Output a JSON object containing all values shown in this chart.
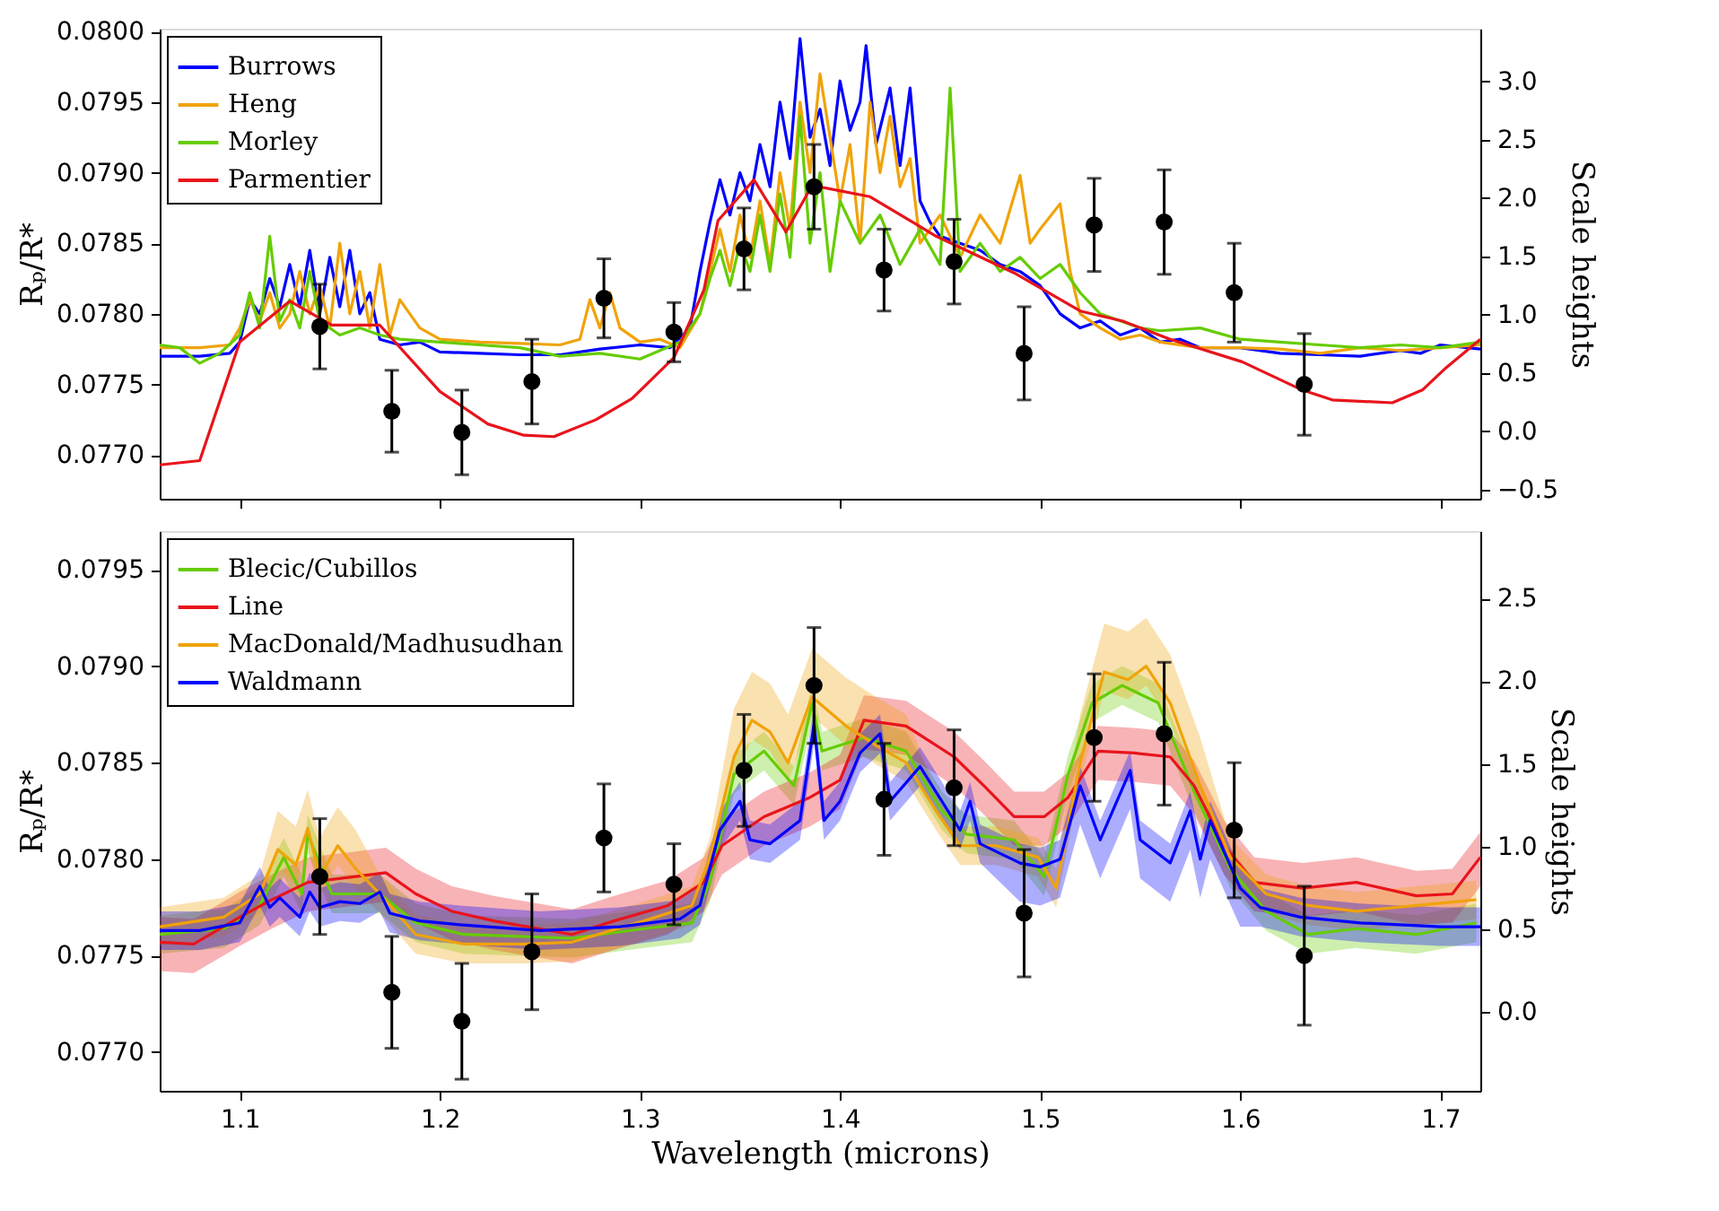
{
  "chart_data": [
    {
      "type": "line",
      "ylabel": "Rₚ/R*",
      "y2label": "Scale heights",
      "legend": "top left",
      "tick_labels": "y",
      "xlim": [
        1.06,
        1.72
      ],
      "xticks": [
        1.1,
        1.2,
        1.3,
        1.4,
        1.5,
        1.6,
        1.7
      ],
      "ylim": [
        0.07669,
        0.08002
      ],
      "yticks": [
        {
          "value": 0.077,
          "label": "0.0770"
        },
        {
          "value": 0.0775,
          "label": "0.0775"
        },
        {
          "value": 0.078,
          "label": "0.0780"
        },
        {
          "value": 0.0785,
          "label": "0.0785"
        },
        {
          "value": 0.079,
          "label": "0.0790"
        },
        {
          "value": 0.0795,
          "label": "0.0795"
        },
        {
          "value": 0.08,
          "label": "0.0800"
        }
      ],
      "y2lim": [
        -0.58,
        3.45
      ],
      "y2ticks": [
        {
          "value": -0.5,
          "label": "−0.5"
        },
        {
          "value": 0,
          "label": "0.0"
        },
        {
          "value": 0.5,
          "label": "0.5"
        },
        {
          "value": 1,
          "label": "1.0"
        },
        {
          "value": 1.5,
          "label": "1.5"
        },
        {
          "value": 2,
          "label": "2.0"
        },
        {
          "value": 2.5,
          "label": "2.5"
        },
        {
          "value": 3,
          "label": "3.0"
        }
      ],
      "series": [
        {
          "name": "Burrows",
          "color": "#0000ff",
          "x": [
            1.06,
            1.08,
            1.095,
            1.1,
            1.105,
            1.11,
            1.115,
            1.12,
            1.125,
            1.13,
            1.135,
            1.14,
            1.145,
            1.15,
            1.155,
            1.16,
            1.165,
            1.17,
            1.18,
            1.19,
            1.2,
            1.22,
            1.24,
            1.26,
            1.28,
            1.3,
            1.315,
            1.325,
            1.33,
            1.335,
            1.34,
            1.345,
            1.35,
            1.355,
            1.36,
            1.365,
            1.37,
            1.375,
            1.38,
            1.385,
            1.39,
            1.395,
            1.4,
            1.405,
            1.41,
            1.413,
            1.418,
            1.425,
            1.43,
            1.435,
            1.44,
            1.445,
            1.45,
            1.46,
            1.47,
            1.48,
            1.49,
            1.5,
            1.51,
            1.52,
            1.53,
            1.54,
            1.55,
            1.56,
            1.57,
            1.58,
            1.6,
            1.62,
            1.64,
            1.66,
            1.68,
            1.69,
            1.7,
            1.72
          ],
          "values": [
            0.0777,
            0.0777,
            0.07772,
            0.0778,
            0.0781,
            0.078,
            0.07825,
            0.07805,
            0.07835,
            0.07805,
            0.07845,
            0.078,
            0.0784,
            0.07805,
            0.07845,
            0.078,
            0.07815,
            0.07782,
            0.07778,
            0.0778,
            0.07773,
            0.07772,
            0.07771,
            0.07771,
            0.07775,
            0.07778,
            0.07776,
            0.0779,
            0.0783,
            0.07865,
            0.07895,
            0.0787,
            0.079,
            0.0788,
            0.0792,
            0.0789,
            0.0795,
            0.0791,
            0.07995,
            0.07925,
            0.07945,
            0.07905,
            0.07965,
            0.0793,
            0.0795,
            0.0799,
            0.0792,
            0.0796,
            0.07905,
            0.0796,
            0.0788,
            0.07865,
            0.07855,
            0.0785,
            0.07845,
            0.07835,
            0.0783,
            0.0782,
            0.078,
            0.0779,
            0.07795,
            0.07785,
            0.0779,
            0.0778,
            0.07782,
            0.07776,
            0.07776,
            0.07772,
            0.07771,
            0.0777,
            0.07774,
            0.07772,
            0.07778,
            0.07775
          ]
        },
        {
          "name": "Heng",
          "color": "#f0a30a",
          "x": [
            1.06,
            1.08,
            1.095,
            1.1,
            1.105,
            1.11,
            1.115,
            1.12,
            1.125,
            1.13,
            1.135,
            1.14,
            1.145,
            1.15,
            1.155,
            1.16,
            1.165,
            1.17,
            1.175,
            1.18,
            1.19,
            1.2,
            1.22,
            1.24,
            1.26,
            1.27,
            1.275,
            1.28,
            1.285,
            1.29,
            1.3,
            1.31,
            1.32,
            1.33,
            1.335,
            1.34,
            1.345,
            1.35,
            1.355,
            1.36,
            1.365,
            1.37,
            1.375,
            1.38,
            1.385,
            1.39,
            1.4,
            1.405,
            1.41,
            1.415,
            1.42,
            1.425,
            1.43,
            1.435,
            1.44,
            1.45,
            1.46,
            1.47,
            1.48,
            1.49,
            1.495,
            1.5,
            1.51,
            1.515,
            1.52,
            1.53,
            1.54,
            1.55,
            1.56,
            1.58,
            1.6,
            1.62,
            1.64,
            1.66,
            1.68,
            1.7,
            1.72
          ],
          "values": [
            0.07776,
            0.07776,
            0.07778,
            0.0779,
            0.0781,
            0.07795,
            0.07815,
            0.0779,
            0.078,
            0.0783,
            0.078,
            0.0782,
            0.0779,
            0.0785,
            0.078,
            0.0783,
            0.0779,
            0.07835,
            0.07785,
            0.0781,
            0.0779,
            0.07782,
            0.0778,
            0.07779,
            0.07778,
            0.07782,
            0.0781,
            0.0779,
            0.07815,
            0.0779,
            0.0778,
            0.07782,
            0.07776,
            0.078,
            0.0783,
            0.0786,
            0.0783,
            0.0787,
            0.0784,
            0.0788,
            0.07835,
            0.079,
            0.0786,
            0.0795,
            0.079,
            0.0797,
            0.0788,
            0.0792,
            0.0785,
            0.0795,
            0.079,
            0.0794,
            0.0789,
            0.0791,
            0.0785,
            0.0787,
            0.0784,
            0.0787,
            0.0785,
            0.07898,
            0.0785,
            0.0786,
            0.07878,
            0.0783,
            0.078,
            0.0779,
            0.07782,
            0.07785,
            0.0778,
            0.07776,
            0.07776,
            0.07775,
            0.07772,
            0.07776,
            0.07774,
            0.07776,
            0.07778
          ]
        },
        {
          "name": "Morley",
          "color": "#66cc00",
          "x": [
            1.06,
            1.07,
            1.08,
            1.09,
            1.1,
            1.105,
            1.11,
            1.115,
            1.12,
            1.125,
            1.13,
            1.135,
            1.14,
            1.15,
            1.16,
            1.17,
            1.18,
            1.2,
            1.22,
            1.24,
            1.26,
            1.28,
            1.3,
            1.32,
            1.33,
            1.335,
            1.34,
            1.345,
            1.35,
            1.355,
            1.36,
            1.365,
            1.37,
            1.375,
            1.38,
            1.385,
            1.39,
            1.395,
            1.4,
            1.41,
            1.42,
            1.43,
            1.44,
            1.45,
            1.455,
            1.46,
            1.47,
            1.48,
            1.49,
            1.5,
            1.51,
            1.52,
            1.53,
            1.54,
            1.55,
            1.56,
            1.58,
            1.6,
            1.62,
            1.64,
            1.66,
            1.68,
            1.7,
            1.72
          ],
          "values": [
            0.07778,
            0.07776,
            0.07765,
            0.07772,
            0.07785,
            0.07815,
            0.0779,
            0.07855,
            0.07795,
            0.0781,
            0.0779,
            0.0783,
            0.07795,
            0.07785,
            0.0779,
            0.07785,
            0.07782,
            0.0778,
            0.07778,
            0.07776,
            0.0777,
            0.07772,
            0.07768,
            0.0778,
            0.078,
            0.07825,
            0.07845,
            0.0782,
            0.0785,
            0.0783,
            0.0787,
            0.0783,
            0.07885,
            0.0784,
            0.0794,
            0.0785,
            0.079,
            0.0783,
            0.0788,
            0.0785,
            0.0787,
            0.07835,
            0.0786,
            0.07835,
            0.0796,
            0.0783,
            0.0785,
            0.0783,
            0.0784,
            0.07825,
            0.07835,
            0.07815,
            0.078,
            0.07795,
            0.0779,
            0.07788,
            0.0779,
            0.07782,
            0.0778,
            0.07778,
            0.07776,
            0.07778,
            0.07776,
            0.0778
          ]
        },
        {
          "name": "Parmentier",
          "color": "#e8141c",
          "x": [
            1.06,
            1.08,
            1.1,
            1.125,
            1.146,
            1.17,
            1.2,
            1.224,
            1.242,
            1.257,
            1.278,
            1.296,
            1.317,
            1.332,
            1.339,
            1.357,
            1.373,
            1.386,
            1.415,
            1.448,
            1.487,
            1.52,
            1.541,
            1.565,
            1.601,
            1.631,
            1.646,
            1.676,
            1.691,
            1.703,
            1.72
          ],
          "values": [
            0.07693,
            0.07696,
            0.0778,
            0.07809,
            0.07792,
            0.07792,
            0.07745,
            0.07722,
            0.07714,
            0.07713,
            0.07725,
            0.0774,
            0.07769,
            0.07817,
            0.07866,
            0.07895,
            0.07858,
            0.07891,
            0.07883,
            0.07855,
            0.07829,
            0.07802,
            0.07795,
            0.07782,
            0.07766,
            0.07746,
            0.07739,
            0.07737,
            0.07746,
            0.07762,
            0.07782
          ]
        },
        {
          "type": "scatter",
          "color": "#000000",
          "marker": "circle",
          "x": [
            1.14,
            1.176,
            1.211,
            1.246,
            1.282,
            1.317,
            1.352,
            1.387,
            1.422,
            1.457,
            1.492,
            1.527,
            1.562,
            1.597,
            1.632
          ],
          "values": [
            0.07791,
            0.07731,
            0.07716,
            0.07752,
            0.07811,
            0.07787,
            0.07846,
            0.0789,
            0.07831,
            0.07837,
            0.07772,
            0.07863,
            0.07865,
            0.07815,
            0.0775
          ],
          "errors": [
            0.0003,
            0.00029,
            0.0003,
            0.0003,
            0.00028,
            0.00021,
            0.00029,
            0.0003,
            0.00029,
            0.0003,
            0.00033,
            0.00033,
            0.00037,
            0.00035,
            0.00036
          ]
        }
      ]
    },
    {
      "type": "line",
      "xlabel": "Wavelength  (microns)",
      "ylabel": "Rₚ/R*",
      "y2label": "Scale heights",
      "legend": "top left",
      "xlim": [
        1.06,
        1.72
      ],
      "xticks": [
        1.1,
        1.2,
        1.3,
        1.4,
        1.5,
        1.6,
        1.7
      ],
      "ylim": [
        0.0768,
        0.0797
      ],
      "yticks": [
        {
          "value": 0.077,
          "label": "0.0770"
        },
        {
          "value": 0.0775,
          "label": "0.0775"
        },
        {
          "value": 0.078,
          "label": "0.0780"
        },
        {
          "value": 0.0785,
          "label": "0.0785"
        },
        {
          "value": 0.079,
          "label": "0.0790"
        },
        {
          "value": 0.0795,
          "label": "0.0795"
        }
      ],
      "y2lim": [
        -0.476,
        2.908
      ],
      "y2ticks": [
        {
          "value": 0,
          "label": "0.0"
        },
        {
          "value": 0.5,
          "label": "0.5"
        },
        {
          "value": 1,
          "label": "1.0"
        },
        {
          "value": 1.5,
          "label": "1.5"
        },
        {
          "value": 2,
          "label": "2.0"
        },
        {
          "value": 2.5,
          "label": "2.5"
        }
      ],
      "series": [
        {
          "name": "Blecic/Cubillos",
          "color": "#66cc00",
          "x": [
            1.06,
            1.092,
            1.11,
            1.122,
            1.131,
            1.134,
            1.146,
            1.17,
            1.188,
            1.212,
            1.266,
            1.302,
            1.326,
            1.335,
            1.347,
            1.362,
            1.377,
            1.386,
            1.391,
            1.412,
            1.433,
            1.451,
            1.463,
            1.487,
            1.502,
            1.514,
            1.526,
            1.541,
            1.559,
            1.577,
            1.595,
            1.613,
            1.634,
            1.658,
            1.688,
            1.718
          ],
          "values": [
            0.07761,
            0.07764,
            0.07776,
            0.07801,
            0.07782,
            0.07813,
            0.07782,
            0.07782,
            0.07767,
            0.07761,
            0.07759,
            0.07764,
            0.07767,
            0.07788,
            0.07844,
            0.07856,
            0.07838,
            0.07881,
            0.07856,
            0.07863,
            0.07856,
            0.07825,
            0.07813,
            0.0781,
            0.07791,
            0.07844,
            0.07881,
            0.0789,
            0.07881,
            0.07835,
            0.07795,
            0.07773,
            0.07761,
            0.07764,
            0.07761,
            0.07767
          ],
          "lower": [
            0.07751,
            0.07754,
            0.07766,
            0.07791,
            0.07772,
            0.07803,
            0.07772,
            0.07772,
            0.07757,
            0.07751,
            0.07749,
            0.07754,
            0.07757,
            0.07778,
            0.07834,
            0.07846,
            0.07828,
            0.07871,
            0.07846,
            0.07853,
            0.07846,
            0.07815,
            0.07803,
            0.078,
            0.07781,
            0.07834,
            0.07871,
            0.0788,
            0.07871,
            0.07825,
            0.07785,
            0.07763,
            0.07751,
            0.07754,
            0.07751,
            0.07757
          ],
          "upper": [
            0.07771,
            0.07774,
            0.07786,
            0.07811,
            0.07792,
            0.07823,
            0.07792,
            0.07792,
            0.07777,
            0.07771,
            0.07769,
            0.07774,
            0.07777,
            0.07798,
            0.07854,
            0.07866,
            0.07848,
            0.07891,
            0.07866,
            0.07873,
            0.07866,
            0.07835,
            0.07823,
            0.0782,
            0.07801,
            0.07854,
            0.07891,
            0.079,
            0.07891,
            0.07845,
            0.07805,
            0.07783,
            0.07771,
            0.07774,
            0.07771,
            0.07777
          ]
        },
        {
          "name": "Line",
          "color": "#e8141c",
          "x": [
            1.06,
            1.077,
            1.1,
            1.116,
            1.134,
            1.158,
            1.173,
            1.188,
            1.206,
            1.227,
            1.266,
            1.287,
            1.314,
            1.332,
            1.341,
            1.362,
            1.385,
            1.4,
            1.412,
            1.433,
            1.457,
            1.472,
            1.487,
            1.502,
            1.514,
            1.529,
            1.547,
            1.565,
            1.577,
            1.592,
            1.607,
            1.631,
            1.658,
            1.688,
            1.706,
            1.72
          ],
          "values": [
            0.07757,
            0.07756,
            0.0777,
            0.07779,
            0.07788,
            0.07791,
            0.07793,
            0.07782,
            0.07773,
            0.07768,
            0.07761,
            0.07768,
            0.07776,
            0.07788,
            0.07807,
            0.07822,
            0.07832,
            0.07841,
            0.07872,
            0.07869,
            0.07853,
            0.07838,
            0.07822,
            0.07822,
            0.07832,
            0.07856,
            0.07855,
            0.07853,
            0.07838,
            0.07807,
            0.07788,
            0.07785,
            0.07788,
            0.07781,
            0.07782,
            0.07801
          ],
          "lower": [
            0.07742,
            0.07741,
            0.07755,
            0.07764,
            0.07773,
            0.07776,
            0.07778,
            0.07767,
            0.07758,
            0.07753,
            0.07746,
            0.07753,
            0.07761,
            0.07773,
            0.07792,
            0.07807,
            0.07817,
            0.07826,
            0.07857,
            0.07854,
            0.07838,
            0.07823,
            0.07807,
            0.07807,
            0.07817,
            0.07841,
            0.0784,
            0.07838,
            0.07823,
            0.07792,
            0.07773,
            0.0777,
            0.07773,
            0.07766,
            0.07767,
            0.07786
          ],
          "upper": [
            0.0777,
            0.07769,
            0.07783,
            0.07792,
            0.07801,
            0.07804,
            0.07806,
            0.07795,
            0.07786,
            0.07781,
            0.07774,
            0.07781,
            0.07789,
            0.07801,
            0.0782,
            0.07835,
            0.07845,
            0.07854,
            0.07885,
            0.07882,
            0.07866,
            0.07851,
            0.07835,
            0.07835,
            0.07845,
            0.07869,
            0.07868,
            0.07866,
            0.07851,
            0.0782,
            0.07801,
            0.07798,
            0.07801,
            0.07794,
            0.07795,
            0.07814
          ]
        },
        {
          "name": "MacDonald/Madhusudhan",
          "color": "#f0a30a",
          "x": [
            1.06,
            1.092,
            1.11,
            1.119,
            1.128,
            1.134,
            1.14,
            1.149,
            1.158,
            1.17,
            1.188,
            1.212,
            1.242,
            1.266,
            1.302,
            1.326,
            1.335,
            1.347,
            1.356,
            1.365,
            1.374,
            1.386,
            1.403,
            1.418,
            1.433,
            1.448,
            1.46,
            1.478,
            1.499,
            1.508,
            1.52,
            1.532,
            1.544,
            1.553,
            1.565,
            1.58,
            1.595,
            1.613,
            1.634,
            1.658,
            1.688,
            1.718
          ],
          "values": [
            0.07765,
            0.0777,
            0.07782,
            0.07805,
            0.07797,
            0.07816,
            0.07791,
            0.07807,
            0.07795,
            0.07782,
            0.07761,
            0.07756,
            0.07756,
            0.07757,
            0.07768,
            0.07776,
            0.07801,
            0.07853,
            0.07872,
            0.07866,
            0.0785,
            0.07884,
            0.07869,
            0.07859,
            0.0785,
            0.07825,
            0.07807,
            0.07807,
            0.07801,
            0.07785,
            0.0785,
            0.07897,
            0.07893,
            0.079,
            0.07881,
            0.07838,
            0.07801,
            0.07782,
            0.07776,
            0.07773,
            0.07776,
            0.07779
          ],
          "lower": [
            0.07755,
            0.0776,
            0.07772,
            0.07795,
            0.07787,
            0.07806,
            0.07781,
            0.07797,
            0.07785,
            0.07772,
            0.07751,
            0.07746,
            0.07746,
            0.07747,
            0.07758,
            0.07766,
            0.07791,
            0.07843,
            0.07862,
            0.07856,
            0.0784,
            0.07874,
            0.07859,
            0.07849,
            0.0784,
            0.07815,
            0.07797,
            0.07797,
            0.07791,
            0.07775,
            0.0784,
            0.07887,
            0.07883,
            0.0789,
            0.07871,
            0.07828,
            0.07791,
            0.07772,
            0.07766,
            0.07763,
            0.07766,
            0.07769
          ],
          "upper": [
            0.07775,
            0.0778,
            0.07792,
            0.07825,
            0.07817,
            0.07836,
            0.07811,
            0.07827,
            0.07815,
            0.07792,
            0.07771,
            0.07766,
            0.07766,
            0.07767,
            0.07778,
            0.07786,
            0.07811,
            0.07878,
            0.07897,
            0.07891,
            0.07875,
            0.07909,
            0.07894,
            0.07884,
            0.07875,
            0.07835,
            0.07817,
            0.07817,
            0.07811,
            0.07795,
            0.07875,
            0.07922,
            0.07918,
            0.07925,
            0.07906,
            0.07863,
            0.07811,
            0.07792,
            0.07786,
            0.07783,
            0.07786,
            0.07789
          ]
        },
        {
          "name": "Waldmann",
          "color": "#0000ff",
          "x": [
            1.06,
            1.08,
            1.1,
            1.11,
            1.115,
            1.12,
            1.13,
            1.135,
            1.14,
            1.15,
            1.16,
            1.17,
            1.175,
            1.19,
            1.21,
            1.25,
            1.29,
            1.32,
            1.33,
            1.34,
            1.35,
            1.355,
            1.365,
            1.38,
            1.387,
            1.392,
            1.4,
            1.41,
            1.42,
            1.425,
            1.44,
            1.46,
            1.465,
            1.47,
            1.49,
            1.5,
            1.51,
            1.52,
            1.53,
            1.545,
            1.55,
            1.565,
            1.575,
            1.58,
            1.585,
            1.6,
            1.61,
            1.63,
            1.66,
            1.7,
            1.72
          ],
          "values": [
            0.07763,
            0.07763,
            0.07767,
            0.07786,
            0.07775,
            0.0778,
            0.0777,
            0.07783,
            0.07775,
            0.07778,
            0.07777,
            0.07783,
            0.07772,
            0.07768,
            0.07766,
            0.07763,
            0.07765,
            0.07769,
            0.07776,
            0.07815,
            0.0783,
            0.0781,
            0.07808,
            0.0782,
            0.0787,
            0.0782,
            0.0783,
            0.07855,
            0.07865,
            0.0783,
            0.07848,
            0.07815,
            0.0783,
            0.07808,
            0.07798,
            0.07796,
            0.078,
            0.07838,
            0.0781,
            0.07846,
            0.0781,
            0.07798,
            0.07825,
            0.078,
            0.0782,
            0.07785,
            0.07775,
            0.0777,
            0.07767,
            0.07765,
            0.07765
          ],
          "lower": [
            0.07753,
            0.07753,
            0.07757,
            0.07776,
            0.07765,
            0.0777,
            0.0776,
            0.07773,
            0.07765,
            0.07768,
            0.07767,
            0.07773,
            0.07762,
            0.07758,
            0.07756,
            0.07753,
            0.07755,
            0.07759,
            0.07766,
            0.07805,
            0.0782,
            0.078,
            0.07798,
            0.0781,
            0.0786,
            0.0781,
            0.0782,
            0.07845,
            0.07855,
            0.0782,
            0.07838,
            0.07805,
            0.0782,
            0.07798,
            0.07778,
            0.07776,
            0.0778,
            0.07818,
            0.0779,
            0.07826,
            0.0779,
            0.07778,
            0.07805,
            0.0778,
            0.078,
            0.07765,
            0.07765,
            0.0776,
            0.07757,
            0.07755,
            0.07755
          ],
          "upper": [
            0.07773,
            0.07773,
            0.07777,
            0.07796,
            0.07785,
            0.0779,
            0.0778,
            0.07793,
            0.07785,
            0.07788,
            0.07787,
            0.07793,
            0.07782,
            0.07778,
            0.07776,
            0.07773,
            0.07775,
            0.07779,
            0.07786,
            0.07825,
            0.0784,
            0.0782,
            0.07818,
            0.0783,
            0.0788,
            0.0783,
            0.0784,
            0.07865,
            0.07875,
            0.0784,
            0.07858,
            0.07825,
            0.0784,
            0.07818,
            0.07808,
            0.07806,
            0.0781,
            0.07848,
            0.0782,
            0.07856,
            0.0782,
            0.07808,
            0.07835,
            0.0781,
            0.0783,
            0.07795,
            0.07785,
            0.0778,
            0.07777,
            0.07775,
            0.07775
          ]
        },
        {
          "type": "scatter",
          "color": "#000000",
          "marker": "circle",
          "x": [
            1.14,
            1.176,
            1.211,
            1.246,
            1.282,
            1.317,
            1.352,
            1.387,
            1.422,
            1.457,
            1.492,
            1.527,
            1.562,
            1.597,
            1.632
          ],
          "values": [
            0.07791,
            0.07731,
            0.07716,
            0.07752,
            0.07811,
            0.07787,
            0.07846,
            0.0789,
            0.07831,
            0.07837,
            0.07772,
            0.07863,
            0.07865,
            0.07815,
            0.0775
          ],
          "errors": [
            0.0003,
            0.00029,
            0.0003,
            0.0003,
            0.00028,
            0.00021,
            0.00029,
            0.0003,
            0.00029,
            0.0003,
            0.00033,
            0.00033,
            0.00037,
            0.00035,
            0.00036
          ]
        }
      ]
    }
  ]
}
